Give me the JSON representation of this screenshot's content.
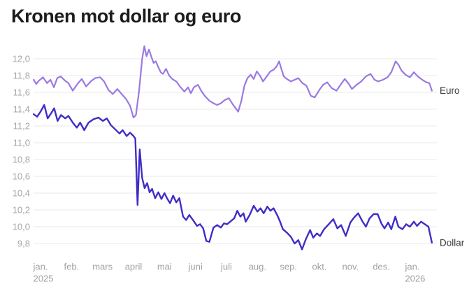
{
  "page": {
    "background": "#ffffff"
  },
  "chart_data": {
    "type": "line",
    "title": "Kronen mot dollar og euro",
    "x_axis": {
      "tick_labels": [
        "jan.",
        "feb.",
        "mars",
        "april",
        "mai",
        "juni",
        "juli",
        "aug.",
        "sep.",
        "okt.",
        "nov.",
        "des.",
        "jan."
      ],
      "year_labels": [
        {
          "text": "2025",
          "tick_index": 0
        },
        {
          "text": "2026",
          "tick_index": 12
        }
      ]
    },
    "y_axis": {
      "min": 9.8,
      "max": 12.0,
      "step": 0.2,
      "tick_labels": [
        "12,0",
        "11,8",
        "11,6",
        "11,4",
        "11,2",
        "11,0",
        "10,8",
        "10,6",
        "10,4",
        "10,2",
        "10,0",
        "9,8"
      ],
      "decimal_style": "comma"
    },
    "grid": "horizontal-only",
    "legend_position": "line-end-labels-right",
    "colors": {
      "euro_line": "#9b79e3",
      "dollar_line": "#3f2dc6",
      "gridline": "#e8e8e8",
      "axis_text": "#a0a0a0",
      "series_label_text": "#3d3d3d",
      "title_text": "#1c1c1c"
    },
    "series": [
      {
        "name": "Euro",
        "color": "#9b79e3",
        "stroke_width": 2.2,
        "points": [
          [
            -0.22,
            11.75
          ],
          [
            -0.14,
            11.7
          ],
          [
            -0.05,
            11.74
          ],
          [
            0.08,
            11.78
          ],
          [
            0.21,
            11.71
          ],
          [
            0.32,
            11.75
          ],
          [
            0.43,
            11.66
          ],
          [
            0.54,
            11.77
          ],
          [
            0.65,
            11.79
          ],
          [
            0.79,
            11.74
          ],
          [
            0.9,
            11.71
          ],
          [
            1.04,
            11.62
          ],
          [
            1.19,
            11.7
          ],
          [
            1.33,
            11.76
          ],
          [
            1.47,
            11.67
          ],
          [
            1.62,
            11.73
          ],
          [
            1.76,
            11.77
          ],
          [
            1.92,
            11.78
          ],
          [
            2.05,
            11.73
          ],
          [
            2.19,
            11.63
          ],
          [
            2.33,
            11.58
          ],
          [
            2.48,
            11.64
          ],
          [
            2.62,
            11.58
          ],
          [
            2.76,
            11.52
          ],
          [
            2.89,
            11.44
          ],
          [
            3.0,
            11.3
          ],
          [
            3.08,
            11.33
          ],
          [
            3.18,
            11.62
          ],
          [
            3.28,
            12.0
          ],
          [
            3.35,
            12.15
          ],
          [
            3.42,
            12.03
          ],
          [
            3.5,
            12.11
          ],
          [
            3.58,
            12.02
          ],
          [
            3.65,
            11.95
          ],
          [
            3.72,
            11.97
          ],
          [
            3.8,
            11.9
          ],
          [
            3.88,
            11.84
          ],
          [
            3.95,
            11.82
          ],
          [
            4.05,
            11.88
          ],
          [
            4.15,
            11.8
          ],
          [
            4.25,
            11.76
          ],
          [
            4.38,
            11.73
          ],
          [
            4.5,
            11.67
          ],
          [
            4.64,
            11.61
          ],
          [
            4.76,
            11.66
          ],
          [
            4.85,
            11.59
          ],
          [
            4.95,
            11.66
          ],
          [
            5.08,
            11.69
          ],
          [
            5.2,
            11.61
          ],
          [
            5.32,
            11.55
          ],
          [
            5.45,
            11.5
          ],
          [
            5.58,
            11.47
          ],
          [
            5.7,
            11.45
          ],
          [
            5.82,
            11.47
          ],
          [
            5.95,
            11.51
          ],
          [
            6.08,
            11.53
          ],
          [
            6.2,
            11.46
          ],
          [
            6.3,
            11.41
          ],
          [
            6.38,
            11.37
          ],
          [
            6.48,
            11.5
          ],
          [
            6.58,
            11.68
          ],
          [
            6.68,
            11.77
          ],
          [
            6.78,
            11.81
          ],
          [
            6.88,
            11.76
          ],
          [
            6.98,
            11.85
          ],
          [
            7.08,
            11.8
          ],
          [
            7.18,
            11.73
          ],
          [
            7.3,
            11.79
          ],
          [
            7.42,
            11.85
          ],
          [
            7.52,
            11.87
          ],
          [
            7.62,
            11.91
          ],
          [
            7.7,
            11.97
          ],
          [
            7.78,
            11.87
          ],
          [
            7.85,
            11.79
          ],
          [
            7.95,
            11.76
          ],
          [
            8.08,
            11.73
          ],
          [
            8.2,
            11.75
          ],
          [
            8.32,
            11.77
          ],
          [
            8.45,
            11.71
          ],
          [
            8.58,
            11.68
          ],
          [
            8.72,
            11.56
          ],
          [
            8.85,
            11.54
          ],
          [
            9.0,
            11.63
          ],
          [
            9.12,
            11.69
          ],
          [
            9.25,
            11.72
          ],
          [
            9.4,
            11.65
          ],
          [
            9.55,
            11.62
          ],
          [
            9.7,
            11.7
          ],
          [
            9.82,
            11.76
          ],
          [
            9.95,
            11.7
          ],
          [
            10.05,
            11.64
          ],
          [
            10.2,
            11.69
          ],
          [
            10.35,
            11.73
          ],
          [
            10.5,
            11.79
          ],
          [
            10.65,
            11.82
          ],
          [
            10.78,
            11.75
          ],
          [
            10.9,
            11.73
          ],
          [
            11.05,
            11.75
          ],
          [
            11.2,
            11.78
          ],
          [
            11.32,
            11.84
          ],
          [
            11.46,
            11.97
          ],
          [
            11.55,
            11.93
          ],
          [
            11.65,
            11.86
          ],
          [
            11.78,
            11.81
          ],
          [
            11.92,
            11.78
          ],
          [
            12.05,
            11.84
          ],
          [
            12.18,
            11.79
          ],
          [
            12.32,
            11.75
          ],
          [
            12.45,
            11.72
          ],
          [
            12.55,
            11.71
          ],
          [
            12.63,
            11.62
          ]
        ]
      },
      {
        "name": "Dollar",
        "color": "#3f2dc6",
        "stroke_width": 2.4,
        "points": [
          [
            -0.22,
            11.34
          ],
          [
            -0.11,
            11.31
          ],
          [
            0.0,
            11.37
          ],
          [
            0.12,
            11.45
          ],
          [
            0.23,
            11.29
          ],
          [
            0.34,
            11.35
          ],
          [
            0.44,
            11.41
          ],
          [
            0.55,
            11.26
          ],
          [
            0.66,
            11.33
          ],
          [
            0.8,
            11.29
          ],
          [
            0.9,
            11.32
          ],
          [
            1.04,
            11.24
          ],
          [
            1.17,
            11.18
          ],
          [
            1.28,
            11.24
          ],
          [
            1.41,
            11.15
          ],
          [
            1.55,
            11.24
          ],
          [
            1.71,
            11.28
          ],
          [
            1.87,
            11.3
          ],
          [
            2.01,
            11.26
          ],
          [
            2.14,
            11.29
          ],
          [
            2.27,
            11.21
          ],
          [
            2.41,
            11.16
          ],
          [
            2.55,
            11.11
          ],
          [
            2.65,
            11.15
          ],
          [
            2.78,
            11.08
          ],
          [
            2.89,
            11.12
          ],
          [
            3.0,
            11.08
          ],
          [
            3.06,
            11.05
          ],
          [
            3.13,
            10.26
          ],
          [
            3.2,
            10.92
          ],
          [
            3.28,
            10.58
          ],
          [
            3.36,
            10.46
          ],
          [
            3.44,
            10.52
          ],
          [
            3.52,
            10.41
          ],
          [
            3.6,
            10.45
          ],
          [
            3.7,
            10.34
          ],
          [
            3.8,
            10.41
          ],
          [
            3.9,
            10.33
          ],
          [
            4.0,
            10.4
          ],
          [
            4.08,
            10.34
          ],
          [
            4.18,
            10.28
          ],
          [
            4.28,
            10.37
          ],
          [
            4.38,
            10.29
          ],
          [
            4.48,
            10.34
          ],
          [
            4.6,
            10.12
          ],
          [
            4.7,
            10.08
          ],
          [
            4.8,
            10.14
          ],
          [
            4.92,
            10.08
          ],
          [
            5.05,
            10.01
          ],
          [
            5.15,
            10.03
          ],
          [
            5.25,
            9.98
          ],
          [
            5.35,
            9.83
          ],
          [
            5.45,
            9.82
          ],
          [
            5.58,
            9.99
          ],
          [
            5.7,
            10.02
          ],
          [
            5.82,
            9.99
          ],
          [
            5.92,
            10.04
          ],
          [
            6.02,
            10.03
          ],
          [
            6.12,
            10.06
          ],
          [
            6.25,
            10.1
          ],
          [
            6.35,
            10.19
          ],
          [
            6.45,
            10.12
          ],
          [
            6.55,
            10.16
          ],
          [
            6.62,
            10.06
          ],
          [
            6.75,
            10.14
          ],
          [
            6.88,
            10.25
          ],
          [
            7.0,
            10.18
          ],
          [
            7.1,
            10.22
          ],
          [
            7.2,
            10.16
          ],
          [
            7.32,
            10.24
          ],
          [
            7.42,
            10.19
          ],
          [
            7.52,
            10.22
          ],
          [
            7.65,
            10.13
          ],
          [
            7.72,
            10.07
          ],
          [
            7.82,
            9.97
          ],
          [
            7.95,
            9.93
          ],
          [
            8.08,
            9.88
          ],
          [
            8.2,
            9.8
          ],
          [
            8.32,
            9.84
          ],
          [
            8.44,
            9.73
          ],
          [
            8.56,
            9.85
          ],
          [
            8.7,
            9.96
          ],
          [
            8.8,
            9.87
          ],
          [
            8.92,
            9.92
          ],
          [
            9.02,
            9.89
          ],
          [
            9.15,
            9.97
          ],
          [
            9.3,
            10.03
          ],
          [
            9.45,
            10.09
          ],
          [
            9.58,
            9.98
          ],
          [
            9.7,
            10.02
          ],
          [
            9.85,
            9.89
          ],
          [
            10.0,
            10.05
          ],
          [
            10.12,
            10.11
          ],
          [
            10.25,
            10.16
          ],
          [
            10.38,
            10.07
          ],
          [
            10.5,
            10.0
          ],
          [
            10.62,
            10.1
          ],
          [
            10.75,
            10.15
          ],
          [
            10.88,
            10.15
          ],
          [
            11.0,
            10.04
          ],
          [
            11.1,
            9.98
          ],
          [
            11.22,
            10.05
          ],
          [
            11.32,
            9.97
          ],
          [
            11.45,
            10.12
          ],
          [
            11.55,
            10.0
          ],
          [
            11.68,
            9.97
          ],
          [
            11.8,
            10.03
          ],
          [
            11.92,
            10.0
          ],
          [
            12.05,
            10.06
          ],
          [
            12.15,
            10.01
          ],
          [
            12.28,
            10.06
          ],
          [
            12.4,
            10.03
          ],
          [
            12.52,
            10.0
          ],
          [
            12.63,
            9.81
          ]
        ]
      }
    ]
  }
}
